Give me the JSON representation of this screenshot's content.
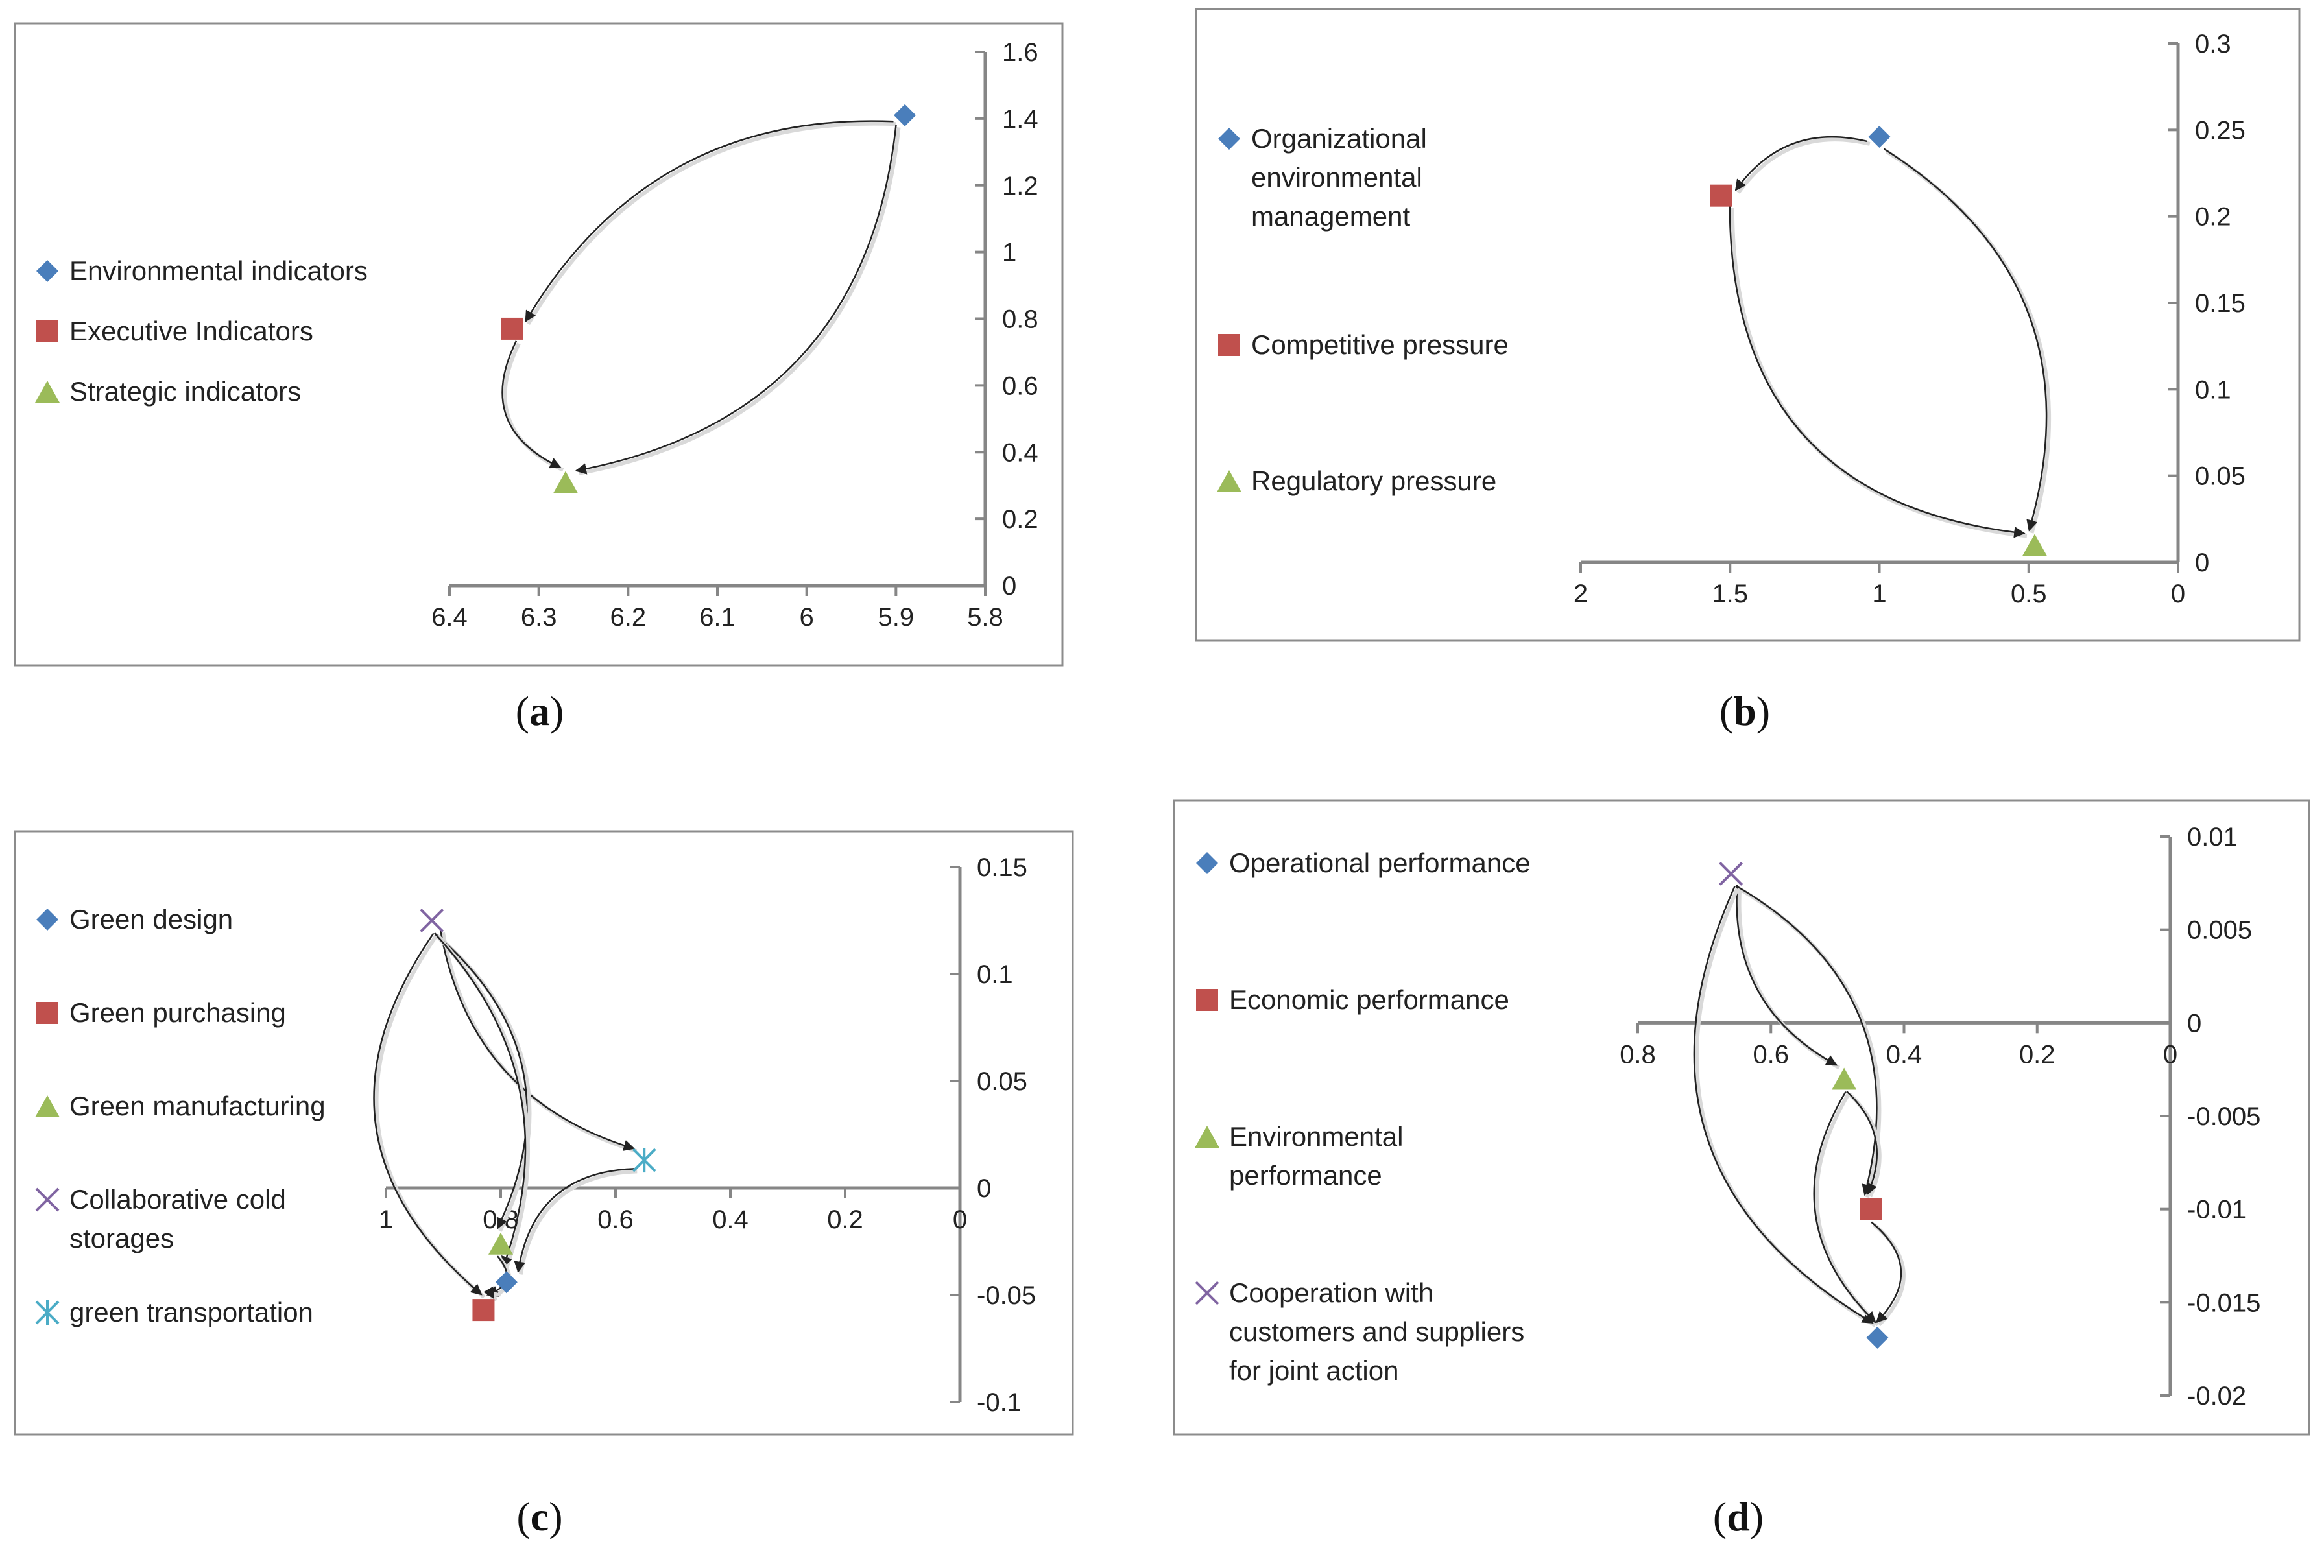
{
  "colors": {
    "diamond": "#4a7ebb",
    "square": "#c0504d",
    "triangle": "#9bbb59",
    "x": "#8064a2",
    "star": "#4bacc6",
    "axis": "#868686",
    "frame": "#8c8c8c",
    "arrow": "#222222"
  },
  "chart_data": [
    {
      "id": "a",
      "type": "scatter",
      "caption_letter": "a",
      "x_ticks": [
        "6.4",
        "6.3",
        "6.2",
        "6.1",
        "6",
        "5.9",
        "5.8"
      ],
      "y_ticks": [
        "0",
        "0.2",
        "0.4",
        "0.6",
        "0.8",
        "1",
        "1.2",
        "1.4",
        "1.6"
      ],
      "xlim": [
        5.8,
        6.4
      ],
      "ylim": [
        0,
        1.6
      ],
      "x_reversed": true,
      "series": [
        {
          "name": "Environmental  indicators",
          "marker": "diamond",
          "legend_lines": [
            "Environmental  indicators"
          ],
          "x": 5.89,
          "y": 1.41
        },
        {
          "name": "Executive Indicators",
          "marker": "square",
          "legend_lines": [
            "Executive Indicators"
          ],
          "x": 6.33,
          "y": 0.77
        },
        {
          "name": "Strategic indicators",
          "marker": "triangle",
          "legend_lines": [
            "Strategic indicators"
          ],
          "x": 6.27,
          "y": 0.31
        }
      ],
      "arrows": [
        {
          "from": "Environmental  indicators",
          "to": "Executive Indicators"
        },
        {
          "from": "Environmental  indicators",
          "to": "Strategic indicators"
        },
        {
          "from": "Executive Indicators",
          "to": "Strategic indicators"
        }
      ]
    },
    {
      "id": "b",
      "type": "scatter",
      "caption_letter": "b",
      "x_ticks": [
        "2",
        "1.5",
        "1",
        "0.5",
        "0"
      ],
      "y_ticks": [
        "0",
        "0.05",
        "0.1",
        "0.15",
        "0.2",
        "0.25",
        "0.3"
      ],
      "xlim": [
        0,
        2
      ],
      "ylim": [
        0,
        0.3
      ],
      "x_reversed": true,
      "series": [
        {
          "name": "Organizational environmental management",
          "marker": "diamond",
          "legend_lines": [
            "Organizational",
            "environmental",
            "management"
          ],
          "x": 1.0,
          "y": 0.246
        },
        {
          "name": "Competitive pressure",
          "marker": "square",
          "legend_lines": [
            "Competitive pressure"
          ],
          "x": 1.53,
          "y": 0.212
        },
        {
          "name": "Regulatory  pressure",
          "marker": "triangle",
          "legend_lines": [
            "Regulatory  pressure"
          ],
          "x": 0.48,
          "y": 0.01
        }
      ],
      "arrows": [
        {
          "from": "Organizational environmental management",
          "to": "Competitive pressure"
        },
        {
          "from": "Organizational environmental management",
          "to": "Regulatory  pressure"
        },
        {
          "from": "Competitive pressure",
          "to": "Regulatory  pressure"
        }
      ]
    },
    {
      "id": "c",
      "type": "scatter",
      "caption_letter": "c",
      "x_ticks": [
        "1",
        "0.8",
        "0.6",
        "0.4",
        "0.2",
        "0"
      ],
      "y_ticks": [
        "-0.1",
        "-0.05",
        "0",
        "0.05",
        "0.1",
        "0.15"
      ],
      "xlim": [
        0,
        1
      ],
      "ylim": [
        -0.1,
        0.15
      ],
      "x_reversed": true,
      "series": [
        {
          "name": "Green design",
          "marker": "diamond",
          "legend_lines": [
            "Green design"
          ],
          "x": 0.79,
          "y": -0.044
        },
        {
          "name": "Green purchasing",
          "marker": "square",
          "legend_lines": [
            "Green purchasing"
          ],
          "x": 0.83,
          "y": -0.057
        },
        {
          "name": "Green manufacturing",
          "marker": "triangle",
          "legend_lines": [
            "Green manufacturing"
          ],
          "x": 0.8,
          "y": -0.026
        },
        {
          "name": "Collaborative cold storages",
          "marker": "x",
          "legend_lines": [
            "Collaborative cold",
            "storages"
          ],
          "x": 0.92,
          "y": 0.125
        },
        {
          "name": "green transportation",
          "marker": "star",
          "legend_lines": [
            "green transportation"
          ],
          "x": 0.55,
          "y": 0.013
        }
      ],
      "arrows": [
        {
          "from": "Collaborative cold storages",
          "to": "green transportation"
        },
        {
          "from": "Collaborative cold storages",
          "to": "Green manufacturing"
        },
        {
          "from": "Collaborative cold storages",
          "to": "Green purchasing"
        },
        {
          "from": "Collaborative cold storages",
          "to": "Green design"
        },
        {
          "from": "green transportation",
          "to": "Green design"
        },
        {
          "from": "Green manufacturing",
          "to": "Green purchasing"
        },
        {
          "from": "Green design",
          "to": "Green purchasing"
        }
      ]
    },
    {
      "id": "d",
      "type": "scatter",
      "caption_letter": "d",
      "x_ticks": [
        "0.8",
        "0.6",
        "0.4",
        "0.2",
        "0"
      ],
      "y_ticks": [
        "-0.02",
        "-0.015",
        "-0.01",
        "-0.005",
        "0",
        "0.005",
        "0.01"
      ],
      "xlim": [
        0,
        0.8
      ],
      "ylim": [
        -0.02,
        0.01
      ],
      "x_reversed": true,
      "series": [
        {
          "name": "Operational performance",
          "marker": "diamond",
          "legend_lines": [
            "Operational performance"
          ],
          "x": 0.44,
          "y": -0.0169
        },
        {
          "name": "Economic performance",
          "marker": "square",
          "legend_lines": [
            "Economic performance"
          ],
          "x": 0.45,
          "y": -0.01
        },
        {
          "name": "Environmental performance",
          "marker": "triangle",
          "legend_lines": [
            "Environmental",
            "performance"
          ],
          "x": 0.49,
          "y": -0.003
        },
        {
          "name": "Cooperation with customers and suppliers for joint action",
          "marker": "x",
          "legend_lines": [
            "Cooperation with",
            "customers and suppliers",
            "for joint action"
          ],
          "x": 0.66,
          "y": 0.008
        }
      ],
      "arrows": [
        {
          "from": "Cooperation with customers and suppliers for joint action",
          "to": "Environmental performance"
        },
        {
          "from": "Cooperation with customers and suppliers for joint action",
          "to": "Economic performance"
        },
        {
          "from": "Cooperation with customers and suppliers for joint action",
          "to": "Operational performance"
        },
        {
          "from": "Environmental performance",
          "to": "Economic performance"
        },
        {
          "from": "Environmental performance",
          "to": "Operational performance"
        },
        {
          "from": "Economic performance",
          "to": "Operational performance"
        }
      ]
    }
  ]
}
